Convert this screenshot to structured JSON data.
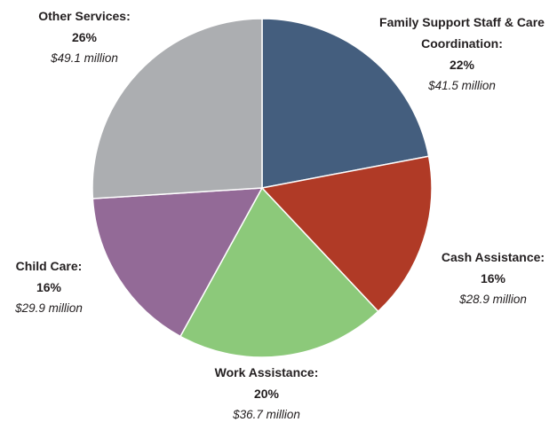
{
  "chart_data": {
    "type": "pie",
    "categories": [
      "Family Support Staff & Care Coordination:",
      "Cash Assistance:",
      "Work Assistance:",
      "Child Care:",
      "Other Services:"
    ],
    "values": [
      22,
      16,
      20,
      16,
      26
    ],
    "value_labels": [
      "22%",
      "16%",
      "20%",
      "16%",
      "26%"
    ],
    "amounts": [
      "$41.5 million",
      "$28.9 million",
      "$36.7 million",
      "$29.9 million",
      "$49.1 million"
    ],
    "colors": [
      "#445e7e",
      "#b03a26",
      "#8cc97a",
      "#936a97",
      "#acaeb1"
    ]
  }
}
